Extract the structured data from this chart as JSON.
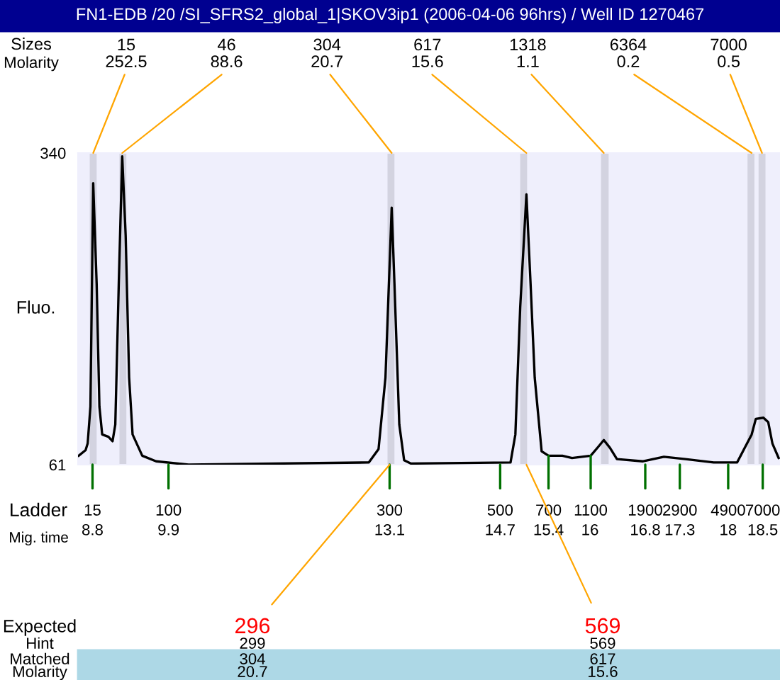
{
  "chart_data": {
    "type": "line",
    "title": "FN1-EDB /20 /SI_SFRS2_global_1|SKOV3ip1 (2006-04-06 96hrs) / Well ID 1270467",
    "ylabel": "Fluo.",
    "x": [
      8.6,
      8.7,
      8.73,
      8.77,
      8.81,
      8.86,
      8.9,
      8.94,
      9.03,
      9.09,
      9.13,
      9.18,
      9.23,
      9.28,
      9.33,
      9.38,
      9.52,
      9.72,
      10.19,
      12.8,
      12.94,
      13.04,
      13.13,
      13.17,
      13.24,
      13.31,
      13.41,
      14.85,
      14.92,
      14.99,
      15.08,
      15.14,
      15.2,
      15.3,
      15.4,
      15.6,
      15.74,
      16.01,
      16.12,
      16.2,
      16.29,
      16.39,
      16.76,
      17.07,
      17.38,
      17.79,
      18.13,
      18.23,
      18.34,
      18.4,
      18.51,
      18.58,
      18.64,
      18.73
    ],
    "series": [
      {
        "color": "#000000",
        "values": [
          69,
          74,
          80,
          113,
          313,
          223,
          113,
          88,
          86,
          82,
          97,
          223,
          337,
          266,
          139,
          88,
          69,
          64,
          61,
          63,
          75,
          139,
          291,
          223,
          97,
          65,
          62,
          63,
          88,
          202,
          303,
          223,
          139,
          73,
          69,
          69,
          67,
          69,
          77,
          83,
          76,
          66,
          64,
          68,
          66,
          63,
          63,
          75,
          88,
          102,
          103,
          99,
          80,
          67
        ]
      }
    ],
    "xlim": [
      8.59,
      18.75
    ],
    "ylim": [
      61,
      340
    ],
    "yticks": [
      61,
      340
    ],
    "xlabel": "Mig. time",
    "xticks": [
      8.8,
      9.9,
      13.1,
      14.7,
      15.4,
      16,
      16.8,
      17.3,
      18,
      18.5
    ],
    "bands": [
      {
        "axis": "x",
        "from": 8.76,
        "to": 8.86,
        "color": "#d3d3e0"
      },
      {
        "axis": "x",
        "from": 9.19,
        "to": 9.29,
        "color": "#d3d3e0"
      },
      {
        "axis": "x",
        "from": 13.07,
        "to": 13.17,
        "color": "#d3d3e0"
      },
      {
        "axis": "x",
        "from": 14.99,
        "to": 15.09,
        "color": "#d3d3e0"
      },
      {
        "axis": "x",
        "from": 16.16,
        "to": 16.27,
        "color": "#d3d3e0"
      },
      {
        "axis": "x",
        "from": 18.28,
        "to": 18.38,
        "color": "#d3d3e0"
      },
      {
        "axis": "x",
        "from": 18.44,
        "to": 18.54,
        "color": "#d3d3e0"
      }
    ],
    "annotations": [
      "Sizes",
      "Molarity",
      {
        "text": "15\n252.5",
        "x": 8.81,
        "y": 340
      },
      {
        "text": "46\n88.6",
        "x": 9.23,
        "y": 340
      },
      {
        "text": "304\n20.7",
        "x": 13.13,
        "y": 340
      },
      {
        "text": "617\n15.6",
        "x": 15.08,
        "y": 340
      },
      {
        "text": "1318\n1.1",
        "x": 16.2,
        "y": 340
      },
      {
        "text": "6364\n0.2",
        "x": 18.34,
        "y": 340
      },
      {
        "text": "7000\n0.5",
        "x": 18.49,
        "y": 340
      },
      "Ladder",
      {
        "text": "15",
        "x": 8.8,
        "y": 61
      },
      {
        "text": "100",
        "x": 9.9,
        "y": 61
      },
      {
        "text": "300",
        "x": 13.1,
        "y": 61
      },
      {
        "text": "500",
        "x": 14.7,
        "y": 61
      },
      {
        "text": "700",
        "x": 15.4,
        "y": 69
      },
      {
        "text": "1100",
        "x": 16.01,
        "y": 69
      },
      {
        "text": "1900",
        "x": 16.8,
        "y": 61
      },
      {
        "text": "2900",
        "x": 17.3,
        "y": 61
      },
      {
        "text": "4900",
        "x": 18,
        "y": 61
      },
      {
        "text": "7000",
        "x": 18.5,
        "y": 61
      },
      "Expected",
      "Hint",
      "Matched",
      "Molarity",
      {
        "text": "296",
        "x": 13.1,
        "y": 61
      },
      "299",
      "304",
      "20.7",
      {
        "text": "569",
        "x": 15.08,
        "y": 61
      },
      "569",
      "617",
      "15.6"
    ]
  }
}
